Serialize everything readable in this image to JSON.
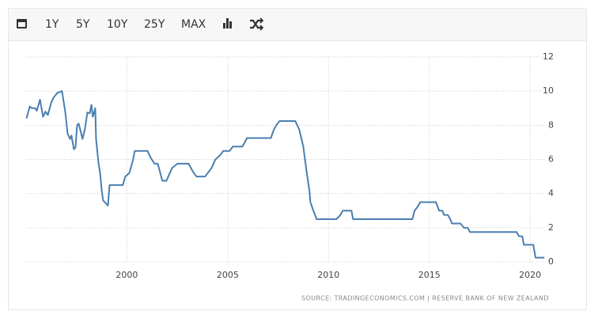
{
  "toolbar": {
    "buttons": [
      "1Y",
      "5Y",
      "10Y",
      "25Y",
      "MAX"
    ]
  },
  "chart_data": {
    "type": "line",
    "source": "SOURCE: TRADINGECONOMICS.COM | RESERVE BANK OF NEW ZEALAND",
    "xlim": [
      1995,
      2020.7
    ],
    "xticks": [
      2000,
      2005,
      2010,
      2015,
      2020
    ],
    "ylim": [
      0,
      12
    ],
    "yticks": [
      0,
      2,
      4,
      6,
      8,
      10,
      12
    ],
    "grid": true,
    "series": [
      {
        "color": "#4a7eb0",
        "x": [
          1995.02,
          1995.18,
          1995.29,
          1995.45,
          1995.53,
          1995.69,
          1995.84,
          1995.96,
          1996.08,
          1996.24,
          1996.35,
          1996.55,
          1996.78,
          1996.94,
          1997.06,
          1997.18,
          1997.25,
          1997.37,
          1997.45,
          1997.53,
          1997.61,
          1997.8,
          1997.92,
          1998.04,
          1998.16,
          1998.24,
          1998.31,
          1998.43,
          1998.47,
          1998.59,
          1998.67,
          1998.75,
          1998.82,
          1998.98,
          1999.06,
          1999.14,
          1999.8,
          1999.92,
          2000.12,
          2000.31,
          2000.39,
          2001.02,
          2001.18,
          2001.37,
          2001.53,
          2001.76,
          2001.96,
          2002.24,
          2002.51,
          2003.06,
          2003.29,
          2003.45,
          2003.88,
          2004.04,
          2004.2,
          2004.39,
          2004.63,
          2004.78,
          2005.1,
          2005.25,
          2005.73,
          2005.96,
          2007.14,
          2007.29,
          2007.41,
          2007.57,
          2008.35,
          2008.55,
          2008.75,
          2008.9,
          2009.06,
          2009.1,
          2009.25,
          2009.41,
          2010.39,
          2010.59,
          2010.71,
          2011.14,
          2011.22,
          2014.16,
          2014.27,
          2014.43,
          2014.55,
          2015.33,
          2015.49,
          2015.65,
          2015.73,
          2015.92,
          2016.04,
          2016.12,
          2016.55,
          2016.71,
          2016.9,
          2017.02,
          2019.33,
          2019.45,
          2019.61,
          2019.69,
          2020.16,
          2020.27,
          2020.71
        ],
        "values": [
          8.4,
          9.1,
          9.0,
          9.0,
          8.85,
          9.5,
          8.5,
          8.8,
          8.6,
          9.3,
          9.6,
          9.9,
          10.0,
          8.8,
          7.5,
          7.2,
          7.4,
          6.6,
          6.7,
          8.0,
          8.1,
          7.2,
          7.8,
          8.75,
          8.7,
          9.2,
          8.5,
          9.0,
          7.2,
          5.8,
          5.2,
          4.2,
          3.6,
          3.4,
          3.3,
          4.5,
          4.5,
          5.0,
          5.2,
          6.0,
          6.5,
          6.5,
          6.1,
          5.75,
          5.75,
          4.75,
          4.75,
          5.5,
          5.75,
          5.75,
          5.25,
          5.0,
          5.0,
          5.25,
          5.5,
          6.0,
          6.25,
          6.5,
          6.5,
          6.75,
          6.75,
          7.25,
          7.25,
          7.75,
          8.0,
          8.25,
          8.25,
          7.75,
          6.75,
          5.4,
          4.1,
          3.5,
          3.0,
          2.5,
          2.5,
          2.75,
          3.0,
          3.0,
          2.5,
          2.5,
          3.0,
          3.25,
          3.5,
          3.5,
          3.0,
          3.0,
          2.75,
          2.75,
          2.5,
          2.25,
          2.25,
          2.0,
          2.0,
          1.75,
          1.75,
          1.5,
          1.5,
          1.0,
          1.0,
          0.25,
          0.25
        ]
      }
    ]
  }
}
